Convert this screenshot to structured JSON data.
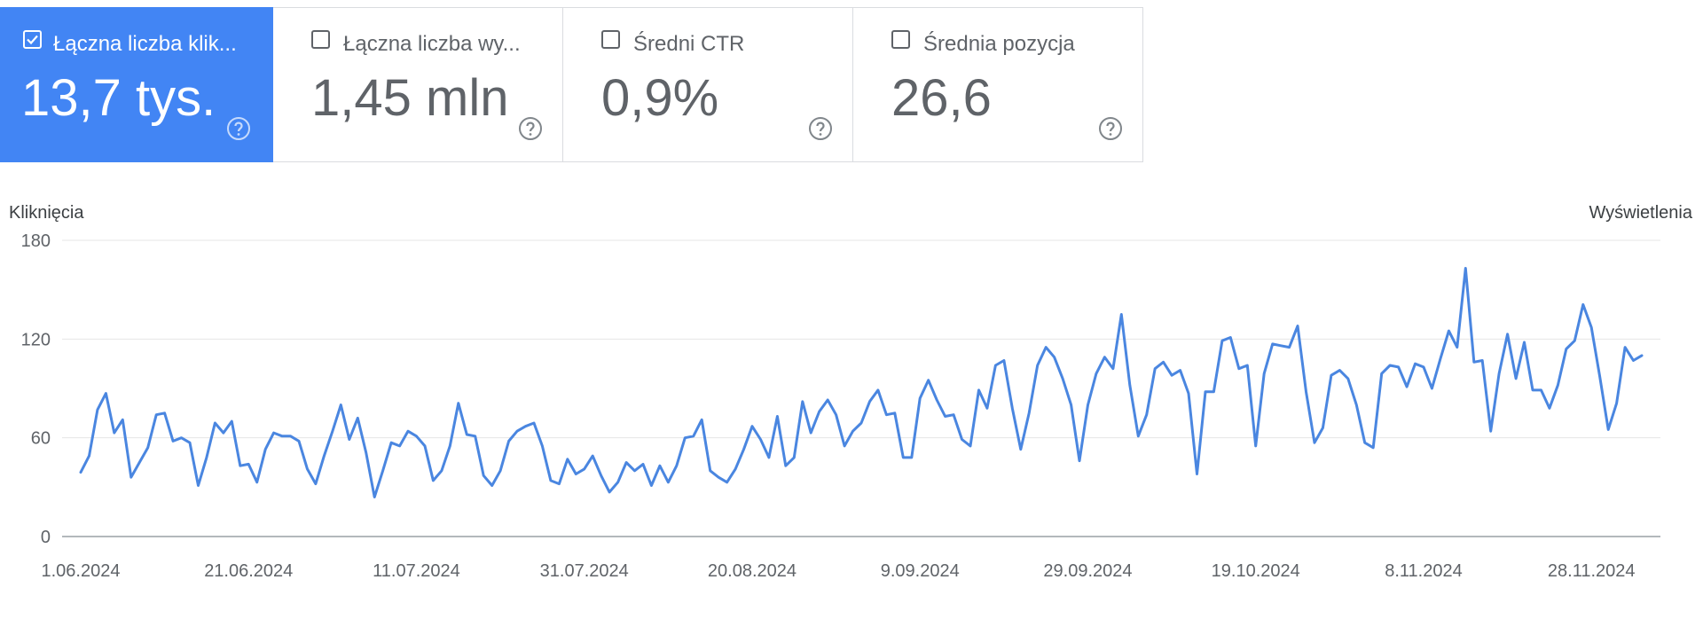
{
  "metric_cards": [
    {
      "label": "Łączna liczba klik...",
      "value": "13,7 tys.",
      "selected": true
    },
    {
      "label": "Łączna liczba wy...",
      "value": "1,45 mln",
      "selected": false
    },
    {
      "label": "Średni CTR",
      "value": "0,9%",
      "selected": false
    },
    {
      "label": "Średnia pozycja",
      "value": "26,6",
      "selected": false
    }
  ],
  "icons": {
    "checkbox": "checkbox-icon",
    "help": "help-circle-icon"
  },
  "colors": {
    "accent": "#4285f4",
    "line": "#4a86e0",
    "grid": "#e6e6e6",
    "axis": "#9aa0a6",
    "text": "#5f6368"
  },
  "chart_data": {
    "type": "line",
    "ylabel_left": "Kliknięcia",
    "ylabel_right": "Wyświetlenia",
    "ylim": [
      0,
      180
    ],
    "y_ticks": [
      "0",
      "60",
      "120",
      "180"
    ],
    "x_tick_labels": [
      "1.06.2024",
      "21.06.2024",
      "11.07.2024",
      "31.07.2024",
      "20.08.2024",
      "9.09.2024",
      "29.09.2024",
      "19.10.2024",
      "8.11.2024",
      "28.11.2024"
    ],
    "x_start": "2024-06-01",
    "grid": true,
    "series": [
      {
        "values": [
          39,
          49,
          77,
          87,
          63,
          71,
          36,
          45,
          54,
          74,
          75,
          58,
          60,
          57,
          31,
          48,
          69,
          63,
          70,
          43,
          44,
          33,
          53,
          63,
          61,
          61,
          58,
          41,
          32,
          49,
          64,
          80,
          59,
          72,
          51,
          24,
          40,
          57,
          55,
          64,
          61,
          55,
          34,
          40,
          55,
          81,
          62,
          61,
          37,
          31,
          40,
          58,
          64,
          67,
          69,
          55,
          34,
          32,
          47,
          38,
          41,
          49,
          37,
          27,
          33,
          45,
          40,
          44,
          31,
          43,
          33,
          43,
          60,
          61,
          71,
          40,
          36,
          33,
          41,
          53,
          67,
          59,
          48,
          73,
          43,
          48,
          82,
          63,
          76,
          83,
          74,
          55,
          64,
          69,
          82,
          89,
          74,
          75,
          48,
          48,
          84,
          95,
          83,
          73,
          74,
          59,
          55,
          89,
          78,
          104,
          107,
          78,
          53,
          75,
          104,
          115,
          109,
          96,
          80,
          46,
          80,
          99,
          109,
          102,
          135,
          92,
          61,
          74,
          102,
          106,
          98,
          101,
          87,
          38,
          88,
          88,
          119,
          121,
          102,
          104,
          55,
          99,
          117,
          116,
          115,
          128,
          88,
          57,
          66,
          98,
          101,
          96,
          80,
          57,
          54,
          99,
          104,
          103,
          91,
          105,
          103,
          90,
          108,
          125,
          115,
          163,
          106,
          107,
          64,
          99,
          123,
          96,
          118,
          89,
          89,
          78,
          92,
          114,
          119,
          141,
          127,
          97,
          65,
          81,
          115,
          107,
          110
        ]
      }
    ]
  }
}
